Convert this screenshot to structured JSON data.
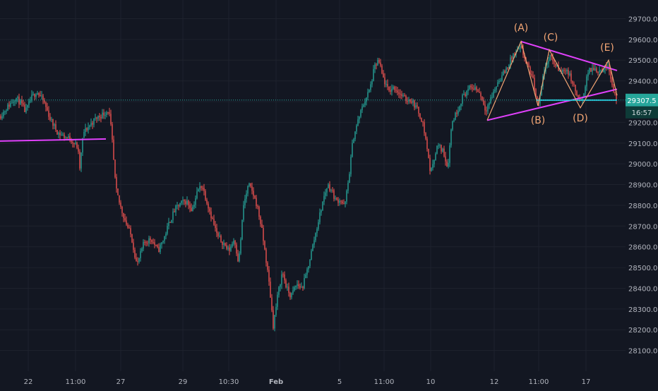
{
  "chart_data": {
    "type": "candlestick",
    "ylim": [
      28000,
      29790
    ],
    "xlim": [
      0,
      900
    ],
    "x_ticks": [
      {
        "label": "22",
        "x": 40
      },
      {
        "label": "11:00",
        "x": 107
      },
      {
        "label": "27",
        "x": 171
      },
      {
        "label": "29",
        "x": 259
      },
      {
        "label": "10:30",
        "x": 324
      },
      {
        "label": "Feb",
        "x": 391
      },
      {
        "label": "5",
        "x": 481
      },
      {
        "label": "11:00",
        "x": 544
      },
      {
        "label": "10",
        "x": 610
      },
      {
        "label": "12",
        "x": 700
      },
      {
        "label": "11:00",
        "x": 763
      },
      {
        "label": "17",
        "x": 830
      }
    ],
    "y_ticks": [
      28100,
      28200,
      28300,
      28400,
      28500,
      28600,
      28700,
      28800,
      28900,
      29000,
      29100,
      29200,
      29400,
      29500,
      29600,
      29700
    ],
    "last_price": {
      "value": 29307.5,
      "label": "29307.5",
      "countdown": "16:57"
    },
    "colors": {
      "up": "#26a69a",
      "down": "#ef5350",
      "trendline": "#e040fb",
      "wave": "#f2a574",
      "neckline": "#26c6da",
      "price_line": "#26a69a"
    },
    "anchors": [
      [
        0,
        29230
      ],
      [
        12,
        29280
      ],
      [
        22,
        29320
      ],
      [
        30,
        29290
      ],
      [
        36,
        29250
      ],
      [
        45,
        29320
      ],
      [
        52,
        29350
      ],
      [
        62,
        29300
      ],
      [
        72,
        29210
      ],
      [
        82,
        29150
      ],
      [
        92,
        29130
      ],
      [
        100,
        29120
      ],
      [
        110,
        29080
      ],
      [
        113,
        28980
      ],
      [
        118,
        29150
      ],
      [
        128,
        29190
      ],
      [
        136,
        29220
      ],
      [
        146,
        29240
      ],
      [
        154,
        29260
      ],
      [
        158,
        29150
      ],
      [
        164,
        28880
      ],
      [
        170,
        28800
      ],
      [
        178,
        28720
      ],
      [
        186,
        28650
      ],
      [
        194,
        28510
      ],
      [
        204,
        28620
      ],
      [
        214,
        28640
      ],
      [
        224,
        28580
      ],
      [
        232,
        28640
      ],
      [
        240,
        28720
      ],
      [
        248,
        28780
      ],
      [
        256,
        28810
      ],
      [
        264,
        28820
      ],
      [
        272,
        28780
      ],
      [
        280,
        28870
      ],
      [
        286,
        28900
      ],
      [
        292,
        28830
      ],
      [
        300,
        28740
      ],
      [
        308,
        28650
      ],
      [
        316,
        28620
      ],
      [
        324,
        28580
      ],
      [
        332,
        28640
      ],
      [
        338,
        28520
      ],
      [
        345,
        28800
      ],
      [
        352,
        28900
      ],
      [
        358,
        28860
      ],
      [
        364,
        28800
      ],
      [
        370,
        28700
      ],
      [
        376,
        28560
      ],
      [
        382,
        28400
      ],
      [
        387,
        28220
      ],
      [
        394,
        28380
      ],
      [
        400,
        28480
      ],
      [
        406,
        28400
      ],
      [
        412,
        28360
      ],
      [
        420,
        28420
      ],
      [
        428,
        28400
      ],
      [
        434,
        28470
      ],
      [
        440,
        28560
      ],
      [
        446,
        28650
      ],
      [
        452,
        28740
      ],
      [
        458,
        28830
      ],
      [
        464,
        28900
      ],
      [
        470,
        28870
      ],
      [
        476,
        28820
      ],
      [
        482,
        28830
      ],
      [
        488,
        28790
      ],
      [
        494,
        28930
      ],
      [
        500,
        29120
      ],
      [
        508,
        29220
      ],
      [
        516,
        29300
      ],
      [
        524,
        29360
      ],
      [
        530,
        29460
      ],
      [
        536,
        29500
      ],
      [
        542,
        29420
      ],
      [
        550,
        29350
      ],
      [
        558,
        29370
      ],
      [
        566,
        29340
      ],
      [
        574,
        29310
      ],
      [
        582,
        29310
      ],
      [
        590,
        29270
      ],
      [
        598,
        29210
      ],
      [
        604,
        29100
      ],
      [
        610,
        28950
      ],
      [
        614,
        29020
      ],
      [
        620,
        29090
      ],
      [
        628,
        29060
      ],
      [
        634,
        28980
      ],
      [
        640,
        29200
      ],
      [
        648,
        29260
      ],
      [
        656,
        29330
      ],
      [
        664,
        29360
      ],
      [
        672,
        29370
      ],
      [
        680,
        29340
      ],
      [
        688,
        29260
      ],
      [
        696,
        29320
      ],
      [
        706,
        29400
      ],
      [
        716,
        29450
      ],
      [
        726,
        29520
      ],
      [
        738,
        29560
      ],
      [
        746,
        29480
      ],
      [
        754,
        29420
      ],
      [
        762,
        29280
      ],
      [
        770,
        29440
      ],
      [
        778,
        29520
      ],
      [
        786,
        29480
      ],
      [
        794,
        29440
      ],
      [
        802,
        29460
      ],
      [
        810,
        29400
      ],
      [
        818,
        29320
      ],
      [
        824,
        29290
      ],
      [
        832,
        29440
      ],
      [
        840,
        29460
      ],
      [
        848,
        29450
      ],
      [
        856,
        29460
      ],
      [
        862,
        29480
      ],
      [
        868,
        29360
      ],
      [
        874,
        29310
      ]
    ],
    "trendlines": [
      {
        "name": "left-support",
        "from": [
          0,
          29110
        ],
        "to": [
          150,
          29120
        ]
      },
      {
        "name": "triangle-lower",
        "from": [
          690,
          29210
        ],
        "to": [
          874,
          29360
        ]
      },
      {
        "name": "triangle-upper",
        "from": [
          738,
          29590
        ],
        "to": [
          874,
          29450
        ]
      }
    ],
    "neckline": {
      "from": [
        760,
        29307
      ],
      "to": [
        874,
        29307
      ]
    },
    "wave_path": [
      [
        690,
        29210
      ],
      [
        738,
        29590
      ],
      [
        762,
        29280
      ],
      [
        778,
        29550
      ],
      [
        822,
        29270
      ],
      [
        862,
        29500
      ],
      [
        874,
        29330
      ]
    ],
    "wave_labels": [
      {
        "text": "(A)",
        "x": 738,
        "y": 29640
      },
      {
        "text": "(B)",
        "x": 762,
        "y": 29195
      },
      {
        "text": "(C)",
        "x": 780,
        "y": 29595
      },
      {
        "text": "(D)",
        "x": 822,
        "y": 29205
      },
      {
        "text": "(E)",
        "x": 860,
        "y": 29545
      }
    ]
  }
}
